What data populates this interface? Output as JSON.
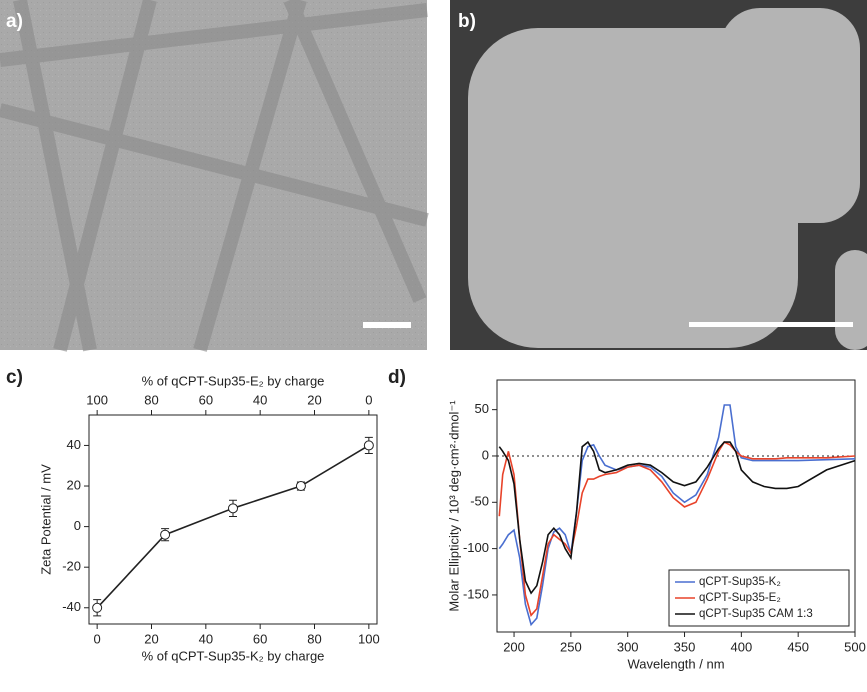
{
  "panel_labels": [
    "a)",
    "b)",
    "c)",
    "d)"
  ],
  "chart_data": [
    {
      "type": "line",
      "xlabel": "% of qCPT-Sup35-K₂ by charge",
      "x2label": "% of qCPT-Sup35-E₂ by charge",
      "ylabel": "Zeta Potential / mV",
      "x": [
        0,
        25,
        50,
        75,
        100
      ],
      "values": [
        -40,
        -4,
        9,
        20,
        40
      ],
      "errors": [
        4,
        3,
        4,
        2,
        4
      ],
      "color": "#222222",
      "marker": "open-circle",
      "xlim": [
        -3,
        103
      ],
      "xticks": [
        0,
        20,
        40,
        60,
        80,
        100
      ],
      "x2lim": [
        103,
        -3
      ],
      "x2ticks": [
        100,
        80,
        60,
        40,
        20,
        0
      ],
      "ylim": [
        -48,
        55
      ],
      "yticks": [
        -40,
        -20,
        0,
        20,
        40
      ]
    },
    {
      "type": "line",
      "xlabel": "Wavelength / nm",
      "ylabel": "Molar Ellipticity / 10³ deg·cm²·dmol⁻¹",
      "x": [
        187,
        190,
        195,
        200,
        205,
        210,
        215,
        220,
        225,
        230,
        235,
        240,
        245,
        250,
        255,
        260,
        265,
        270,
        275,
        280,
        290,
        300,
        310,
        320,
        330,
        340,
        350,
        360,
        370,
        380,
        385,
        390,
        395,
        400,
        410,
        420,
        430,
        440,
        450,
        475,
        500
      ],
      "series": [
        {
          "name": "qCPT-Sup35-K₂",
          "color": "#4a6fd0",
          "values": [
            -100,
            -95,
            -85,
            -80,
            -110,
            -160,
            -182,
            -175,
            -140,
            -100,
            -82,
            -78,
            -85,
            -105,
            -60,
            -5,
            10,
            12,
            0,
            -10,
            -15,
            -12,
            -10,
            -12,
            -22,
            -40,
            -50,
            -42,
            -20,
            20,
            55,
            55,
            10,
            -2,
            -5,
            -5,
            -5,
            -5,
            -5,
            -4,
            -3
          ]
        },
        {
          "name": "qCPT-Sup35-E₂",
          "color": "#e8432a",
          "values": [
            -65,
            -20,
            5,
            -20,
            -90,
            -150,
            -172,
            -165,
            -130,
            -95,
            -85,
            -90,
            -95,
            -105,
            -75,
            -40,
            -25,
            -25,
            -22,
            -20,
            -18,
            -12,
            -10,
            -15,
            -28,
            -45,
            -55,
            -50,
            -25,
            5,
            15,
            12,
            5,
            0,
            -3,
            -3,
            -3,
            -2,
            -2,
            -2,
            0
          ]
        },
        {
          "name": "qCPT-Sup35 CAM 1:3",
          "color": "#111111",
          "values": [
            10,
            5,
            -5,
            -30,
            -90,
            -135,
            -148,
            -140,
            -115,
            -85,
            -78,
            -85,
            -100,
            -110,
            -60,
            10,
            15,
            5,
            -15,
            -18,
            -15,
            -10,
            -8,
            -10,
            -18,
            -28,
            -32,
            -28,
            -12,
            8,
            15,
            15,
            5,
            -15,
            -28,
            -33,
            -35,
            -35,
            -33,
            -15,
            -5
          ]
        }
      ],
      "xlim": [
        185,
        500
      ],
      "xticks": [
        200,
        250,
        300,
        350,
        400,
        450,
        500
      ],
      "ylim": [
        -190,
        82
      ],
      "yticks": [
        -150,
        -100,
        -50,
        0,
        50
      ],
      "zero_line": true,
      "legend": "lower-right"
    }
  ]
}
